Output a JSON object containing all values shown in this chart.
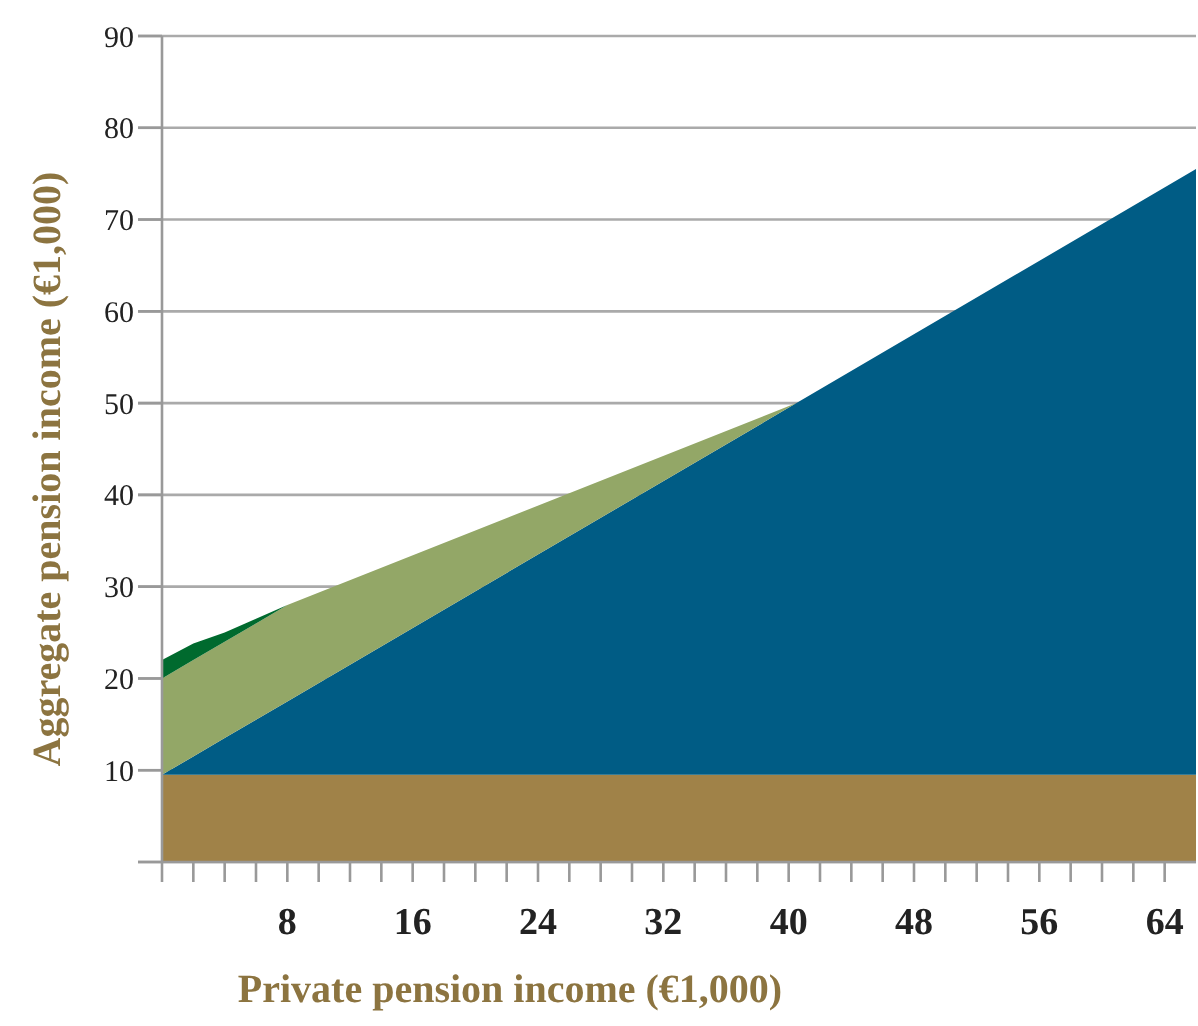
{
  "chart_data": {
    "type": "area",
    "stacked": true,
    "xlabel": "Private pension income (€1,000)",
    "ylabel": "Aggregate pension income (€1,000)",
    "x": [
      0,
      2,
      4,
      6,
      8,
      40.5,
      66
    ],
    "series": [
      {
        "color": "#a08248",
        "values": [
          9.5,
          9.5,
          9.5,
          9.5,
          9.5,
          9.5,
          9.5
        ]
      },
      {
        "color": "#005c85",
        "values": [
          0,
          2,
          4,
          6,
          8,
          40.5,
          66
        ]
      },
      {
        "color": "#93a767",
        "x": [
          0,
          2,
          4,
          6,
          8,
          40.5
        ],
        "values": [
          10.5,
          10.5,
          10.5,
          10.5,
          10.5,
          0
        ]
      },
      {
        "color": "#006a2e",
        "x": [
          0,
          2,
          4,
          6,
          8
        ],
        "values": [
          2,
          1.8,
          1,
          0.5,
          0
        ]
      }
    ],
    "xlim": [
      0,
      66
    ],
    "xticks": [
      {
        "value": 0,
        "label": null
      },
      {
        "value": 2,
        "label": null
      },
      {
        "value": 4,
        "label": null
      },
      {
        "value": 6,
        "label": null
      },
      8,
      {
        "value": 10,
        "label": null
      },
      {
        "value": 12,
        "label": null
      },
      {
        "value": 14,
        "label": null
      },
      16,
      {
        "value": 18,
        "label": null
      },
      {
        "value": 20,
        "label": null
      },
      {
        "value": 22,
        "label": null
      },
      24,
      {
        "value": 26,
        "label": null
      },
      {
        "value": 28,
        "label": null
      },
      {
        "value": 30,
        "label": null
      },
      32,
      {
        "value": 34,
        "label": null
      },
      {
        "value": 36,
        "label": null
      },
      {
        "value": 38,
        "label": null
      },
      40,
      {
        "value": 42,
        "label": null
      },
      {
        "value": 44,
        "label": null
      },
      {
        "value": 46,
        "label": null
      },
      48,
      {
        "value": 50,
        "label": null
      },
      {
        "value": 52,
        "label": null
      },
      {
        "value": 54,
        "label": null
      },
      56,
      {
        "value": 58,
        "label": null
      },
      {
        "value": 60,
        "label": null
      },
      {
        "value": 62,
        "label": null
      },
      64
    ],
    "ylim": [
      0,
      90
    ],
    "yticks": [
      {
        "value": 0,
        "label": null
      },
      10,
      20,
      30,
      40,
      50,
      60,
      70,
      80,
      90
    ],
    "grid": "y"
  }
}
